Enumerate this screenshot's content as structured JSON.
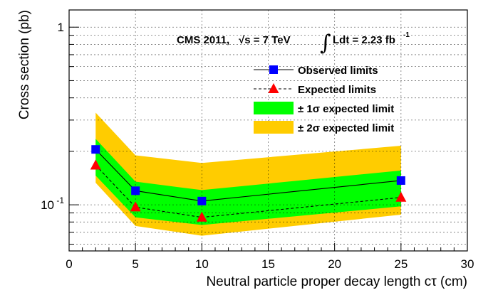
{
  "chart_data": {
    "type": "line",
    "annotation": {
      "experiment": "CMS 2011,",
      "energy_prefix": "√s = 7 TeV",
      "lumi_integral": "∫",
      "lumi_text": "Ldt = 2.23 fb",
      "lumi_exp": "-1"
    },
    "xlabel": "Neutral particle proper decay length cτ (cm)",
    "ylabel": "Cross section (pb)",
    "xlim": [
      0,
      30
    ],
    "ylim": [
      0.055,
      1.25
    ],
    "yscale": "log",
    "grid": true,
    "x_ticks": [
      0,
      5,
      10,
      15,
      20,
      25,
      30
    ],
    "x_tick_labels": [
      "0",
      "5",
      "10",
      "15",
      "20",
      "25",
      "30"
    ],
    "y_major_ticks": [
      0.1,
      1
    ],
    "y_tick_labels": [
      {
        "base": "10",
        "exp": "-1"
      },
      {
        "base": "1",
        "exp": ""
      }
    ],
    "x": [
      2,
      5,
      10,
      25
    ],
    "series": [
      {
        "name": "Observed limits",
        "values": [
          0.205,
          0.12,
          0.105,
          0.137
        ],
        "style": "solid",
        "marker": "square",
        "color": "#0000ff"
      },
      {
        "name": "Expected limits",
        "values": [
          0.167,
          0.097,
          0.085,
          0.11
        ],
        "style": "dashed",
        "marker": "triangle",
        "color": "#ff0000"
      }
    ],
    "bands": [
      {
        "name": "± 2σ expected limit",
        "color": "#ffcc00",
        "lower": [
          0.133,
          0.076,
          0.067,
          0.088
        ],
        "upper": [
          0.33,
          0.19,
          0.172,
          0.215
        ]
      },
      {
        "name": "± 1σ expected limit",
        "color": "#00ff00",
        "lower": [
          0.146,
          0.085,
          0.077,
          0.098
        ],
        "upper": [
          0.235,
          0.135,
          0.121,
          0.156
        ]
      }
    ],
    "legend": {
      "placement": "top-right",
      "entries": [
        {
          "label": "Observed limits",
          "kind": "line-marker",
          "marker": "square",
          "color": "#0000ff",
          "dash": false
        },
        {
          "label": "Expected limits",
          "kind": "line-marker",
          "marker": "triangle",
          "color": "#ff0000",
          "dash": true
        },
        {
          "label": "± 1σ expected limit",
          "kind": "box",
          "color": "#00ff00"
        },
        {
          "label": "± 2σ expected limit",
          "kind": "box",
          "color": "#ffcc00"
        }
      ]
    }
  }
}
